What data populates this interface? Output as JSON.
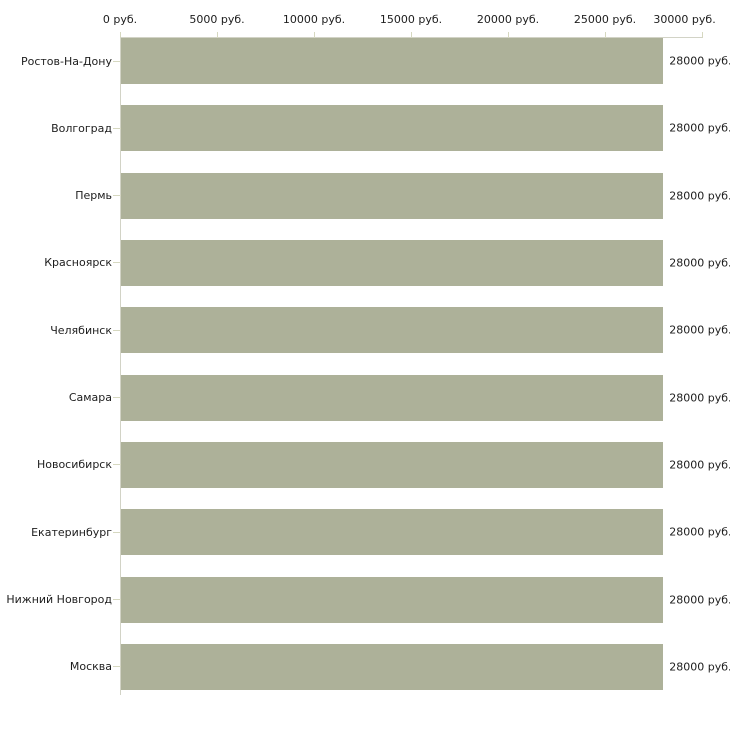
{
  "chart_data": {
    "type": "bar",
    "orientation": "horizontal",
    "title": "",
    "categories": [
      "Ростов-На-Дону",
      "Волгоград",
      "Пермь",
      "Красноярск",
      "Челябинск",
      "Самара",
      "Новосибирск",
      "Екатеринбург",
      "Нижний Новгород",
      "Москва"
    ],
    "values": [
      28000,
      28000,
      28000,
      28000,
      28000,
      28000,
      28000,
      28000,
      28000,
      28000
    ],
    "value_labels": [
      "28000 руб.",
      "28000 руб.",
      "28000 руб.",
      "28000 руб.",
      "28000 руб.",
      "28000 руб.",
      "28000 руб.",
      "28000 руб.",
      "28000 руб.",
      "28000 руб."
    ],
    "x_tick_labels": [
      "0 руб.",
      "5000 руб.",
      "10000 руб.",
      "15000 руб.",
      "20000 руб.",
      "25000 руб.",
      "30000 руб."
    ],
    "xlim": [
      0,
      30000
    ],
    "x_tick_step": 5000,
    "unit": "руб.",
    "grid": false,
    "legend": false,
    "axis_position": "top",
    "colors": {
      "bar": "#adb199",
      "axis": "#d2d3c6",
      "tick": "#d6d8c0",
      "text": "#1d1d1d",
      "background": "#ffffff"
    }
  }
}
